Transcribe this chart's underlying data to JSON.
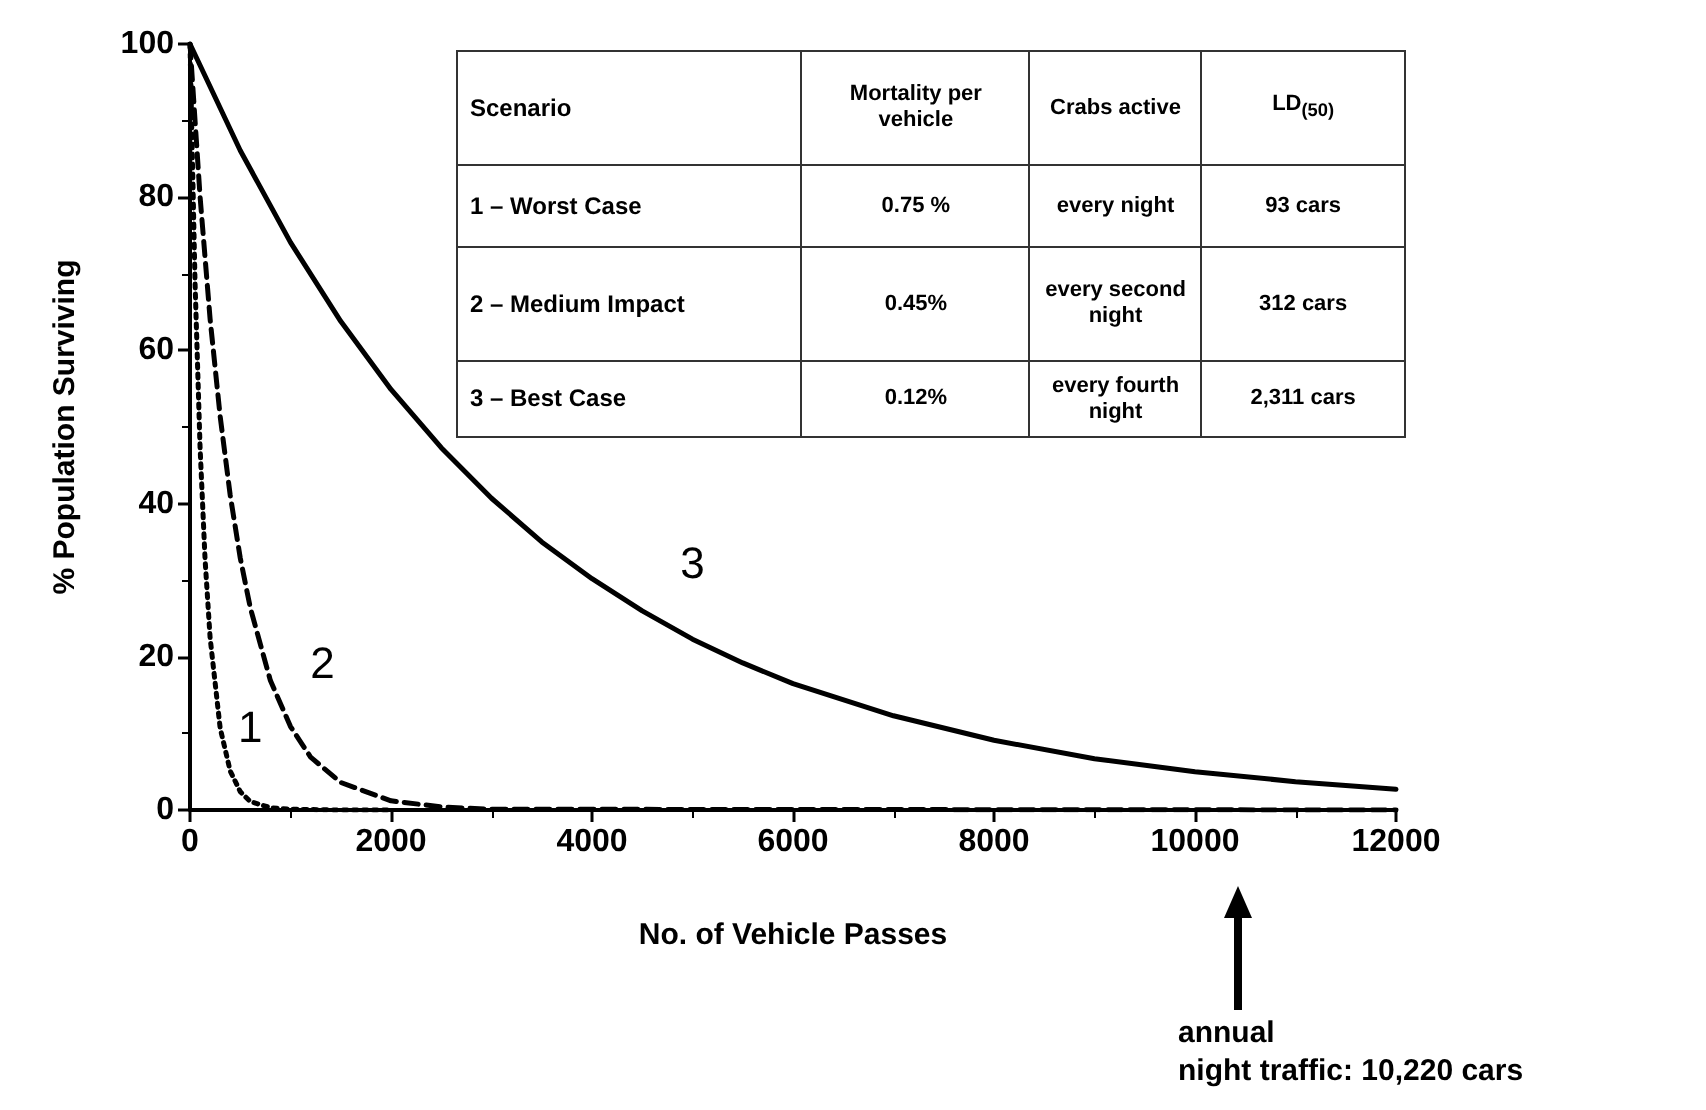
{
  "chart_data": {
    "type": "line",
    "xlabel": "No. of Vehicle Passes",
    "ylabel": "% Population Surviving",
    "series": [
      {
        "name": "1",
        "color": "#000000",
        "line_style": "dotted",
        "x": [
          0,
          50,
          100,
          150,
          200,
          300,
          400,
          500,
          600,
          800,
          1000,
          1500,
          2000
        ],
        "values": [
          100,
          68.9,
          47.4,
          32.7,
          22.5,
          10.7,
          5.1,
          2.4,
          1.1,
          0.3,
          0.1,
          0,
          0
        ]
      },
      {
        "name": "2",
        "color": "#000000",
        "line_style": "dashed",
        "x": [
          0,
          100,
          200,
          300,
          400,
          500,
          600,
          800,
          1000,
          1200,
          1500,
          2000,
          2500,
          3000,
          12000
        ],
        "values": [
          100,
          80.1,
          64.1,
          51.4,
          41.1,
          32.9,
          26.4,
          16.9,
          10.9,
          6.9,
          3.6,
          1.2,
          0.4,
          0.1,
          0
        ]
      },
      {
        "name": "3",
        "color": "#000000",
        "line_style": "solid",
        "x": [
          0,
          500,
          1000,
          1500,
          2000,
          2500,
          3000,
          3500,
          4000,
          4500,
          5000,
          5500,
          6000,
          7000,
          8000,
          9000,
          10000,
          11000,
          12000
        ],
        "values": [
          100,
          86.1,
          74.1,
          63.8,
          54.9,
          47.3,
          40.7,
          35.0,
          30.2,
          26.0,
          22.3,
          19.2,
          16.5,
          12.3,
          9.1,
          6.7,
          5.0,
          3.7,
          2.7
        ]
      }
    ],
    "xlim": [
      0,
      12000
    ],
    "xticks": [
      0,
      2000,
      4000,
      6000,
      8000,
      10000,
      12000
    ],
    "ylim": [
      0,
      100
    ],
    "yticks": [
      0,
      20,
      40,
      60,
      80,
      100
    ],
    "grid": false,
    "legend": false,
    "marker": "none",
    "annotations": [
      "Scenario",
      "Mortality per vehicle",
      "Crabs active",
      "LD$_{(50)}$",
      "1 – Worst Case",
      "0.75 %",
      "every night",
      "93 cars",
      "2 – Medium Impact",
      "0.45%",
      "every second night",
      "312 cars",
      "3 – Best Case",
      "0.12%",
      "every fourth night",
      "2,311 cars",
      "annual\nnight traffic: 10,220 cars"
    ]
  }
}
